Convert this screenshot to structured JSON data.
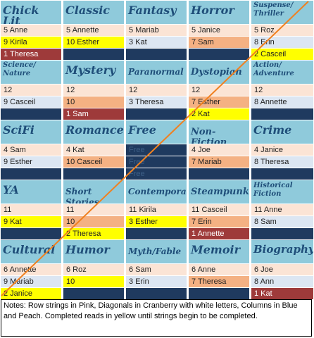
{
  "colors": {
    "header": "#8fcadb",
    "peach": "#fbe4d5",
    "blue": "#dce6f2",
    "navy": "#1f3a5f",
    "completed": "#ffff00",
    "cranberry": "#9e3a3a",
    "orange_cell": "#f4b183",
    "diagonal_line": "#f08020"
  },
  "bingo": {
    "rows": [
      [
        {
          "category": "Chick Lit",
          "lines": [
            "5 Anne",
            "9 Kirila",
            "1 Theresa"
          ]
        },
        {
          "category": "Classic",
          "lines": [
            "5 Annette",
            "10 Esther",
            ""
          ]
        },
        {
          "category": "Fantasy",
          "lines": [
            "5 Mariab",
            "3 Kat",
            ""
          ]
        },
        {
          "category": "Horror",
          "lines": [
            "5 Janice",
            "7 Sam",
            ""
          ]
        },
        {
          "category": "Suspense/ Thriller",
          "lines": [
            "5 Roz",
            "8 Erin",
            "2 Casceil"
          ]
        }
      ],
      [
        {
          "category": "Science/ Nature",
          "lines": [
            "12",
            "9 Casceil",
            ""
          ]
        },
        {
          "category": "Mystery",
          "lines": [
            "12",
            "10",
            "1 Sam"
          ]
        },
        {
          "category": "Paranormal",
          "lines": [
            "12",
            "3 Theresa",
            ""
          ]
        },
        {
          "category": "Dystopian",
          "lines": [
            "12",
            "7 Esther",
            "2 Kat"
          ]
        },
        {
          "category": "Action/ Adventure",
          "lines": [
            "12",
            "8 Annette",
            ""
          ]
        }
      ],
      [
        {
          "category": "SciFi",
          "lines": [
            "4 Sam",
            "9 Esther",
            ""
          ]
        },
        {
          "category": "Romance",
          "lines": [
            "4 Kat",
            "10 Casceil",
            ""
          ]
        },
        {
          "category": "Free",
          "lines": [
            "Free",
            "Free",
            "Free"
          ]
        },
        {
          "category": "Non-Fiction",
          "lines": [
            "4 Joe",
            "7 Mariab",
            ""
          ]
        },
        {
          "category": "Crime",
          "lines": [
            "4 Janice",
            "8 Theresa",
            ""
          ]
        }
      ],
      [
        {
          "category": "YA",
          "lines": [
            "11",
            "9 Kat",
            ""
          ]
        },
        {
          "category": "Short Stories",
          "lines": [
            "11",
            "10",
            "2 Theresa"
          ]
        },
        {
          "category": "Contemporary",
          "lines": [
            "11 Kirila",
            "3 Esther",
            ""
          ]
        },
        {
          "category": "Steampunk",
          "lines": [
            "11 Casceil",
            "7 Erin",
            "1 Annette"
          ]
        },
        {
          "category": "Historical Fiction",
          "lines": [
            "11 Anne",
            "8 Sam",
            ""
          ]
        }
      ],
      [
        {
          "category": "Cultural",
          "lines": [
            "6 Annette",
            "9 Mariab",
            "2 Janice"
          ]
        },
        {
          "category": "Humor",
          "lines": [
            "6 Roz",
            "10",
            ""
          ]
        },
        {
          "category": "Myth/Fable",
          "lines": [
            "6 Sam",
            "3 Erin",
            ""
          ]
        },
        {
          "category": "Memoir",
          "lines": [
            "6 Anne",
            "7 Theresa",
            ""
          ]
        },
        {
          "category": "Biography",
          "lines": [
            "6 Joe",
            "8 Ann",
            "1 Kat"
          ]
        }
      ]
    ]
  },
  "notes": "Notes:  Row strings in Pink, Diagonals in Cranberry with white letters, Columns in Blue and Peach.  Completed reads in yellow until strings begin to be completed."
}
